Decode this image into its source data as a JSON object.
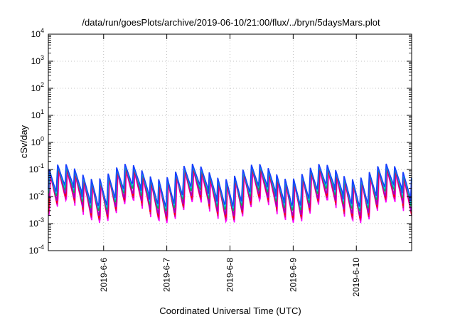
{
  "chart_data": {
    "type": "line",
    "title": "/data/run/goesPlots/archive/2019-06-10/21:00/flux/../bryn/5daysMars.plot",
    "xlabel": "Coordinated Universal Time (UTC)",
    "ylabel": "cSv/day",
    "yscale": "log",
    "ylim": [
      0.0001,
      10000
    ],
    "y_ticks": [
      {
        "base": "10",
        "exp": "-4",
        "value": 0.0001
      },
      {
        "base": "10",
        "exp": "-3",
        "value": 0.001
      },
      {
        "base": "10",
        "exp": "-2",
        "value": 0.01
      },
      {
        "base": "10",
        "exp": "-1",
        "value": 0.1
      },
      {
        "base": "10",
        "exp": "0",
        "value": 1
      },
      {
        "base": "10",
        "exp": "1",
        "value": 10
      },
      {
        "base": "10",
        "exp": "2",
        "value": 100
      },
      {
        "base": "10",
        "exp": "3",
        "value": 1000
      },
      {
        "base": "10",
        "exp": "4",
        "value": 10000
      }
    ],
    "xlim": [
      "2019-06-05T03:00",
      "2019-06-10T21:00"
    ],
    "x_ticks": [
      {
        "label": "2019-6-6",
        "value": "2019-06-06T00:00"
      },
      {
        "label": "2019-6-7",
        "value": "2019-06-07T00:00"
      },
      {
        "label": "2019-6-8",
        "value": "2019-06-08T00:00"
      },
      {
        "label": "2019-6-9",
        "value": "2019-06-09T00:00"
      },
      {
        "label": "2019-6-10",
        "value": "2019-06-10T00:00"
      }
    ],
    "grid": true,
    "legend": "none",
    "sawtooth": {
      "period_hours": 3.2,
      "modulation_period_hours": 24.6,
      "modulation_peak": "2019-06-05T08:00",
      "peak_range": [
        0.04,
        0.15
      ],
      "trough_range": [
        0.0025,
        0.018
      ]
    },
    "series": [
      {
        "color": "#ff00ff",
        "peak_scale": 0.58,
        "trough_scale": 0.42,
        "phase_hours": 0.5
      },
      {
        "color": "#e0007a",
        "peak_scale": 0.72,
        "trough_scale": 0.52,
        "phase_hours": 0.38
      },
      {
        "color": "#ff0000",
        "peak_scale": 0.82,
        "trough_scale": 0.62,
        "phase_hours": 0.28
      },
      {
        "color": "#a000c8",
        "peak_scale": 0.9,
        "trough_scale": 0.74,
        "phase_hours": 0.22
      },
      {
        "color": "#00bb44",
        "peak_scale": 0.96,
        "trough_scale": 1.15,
        "phase_hours": 0.12
      },
      {
        "color": "#00aaaa",
        "peak_scale": 1.0,
        "trough_scale": 1.35,
        "phase_hours": 0.08
      },
      {
        "color": "#00d8e8",
        "peak_scale": 1.04,
        "trough_scale": 1.5,
        "phase_hours": 0.05
      },
      {
        "color": "#1a3cff",
        "peak_scale": 1.08,
        "trough_scale": 1.7,
        "phase_hours": 0.0
      }
    ]
  }
}
